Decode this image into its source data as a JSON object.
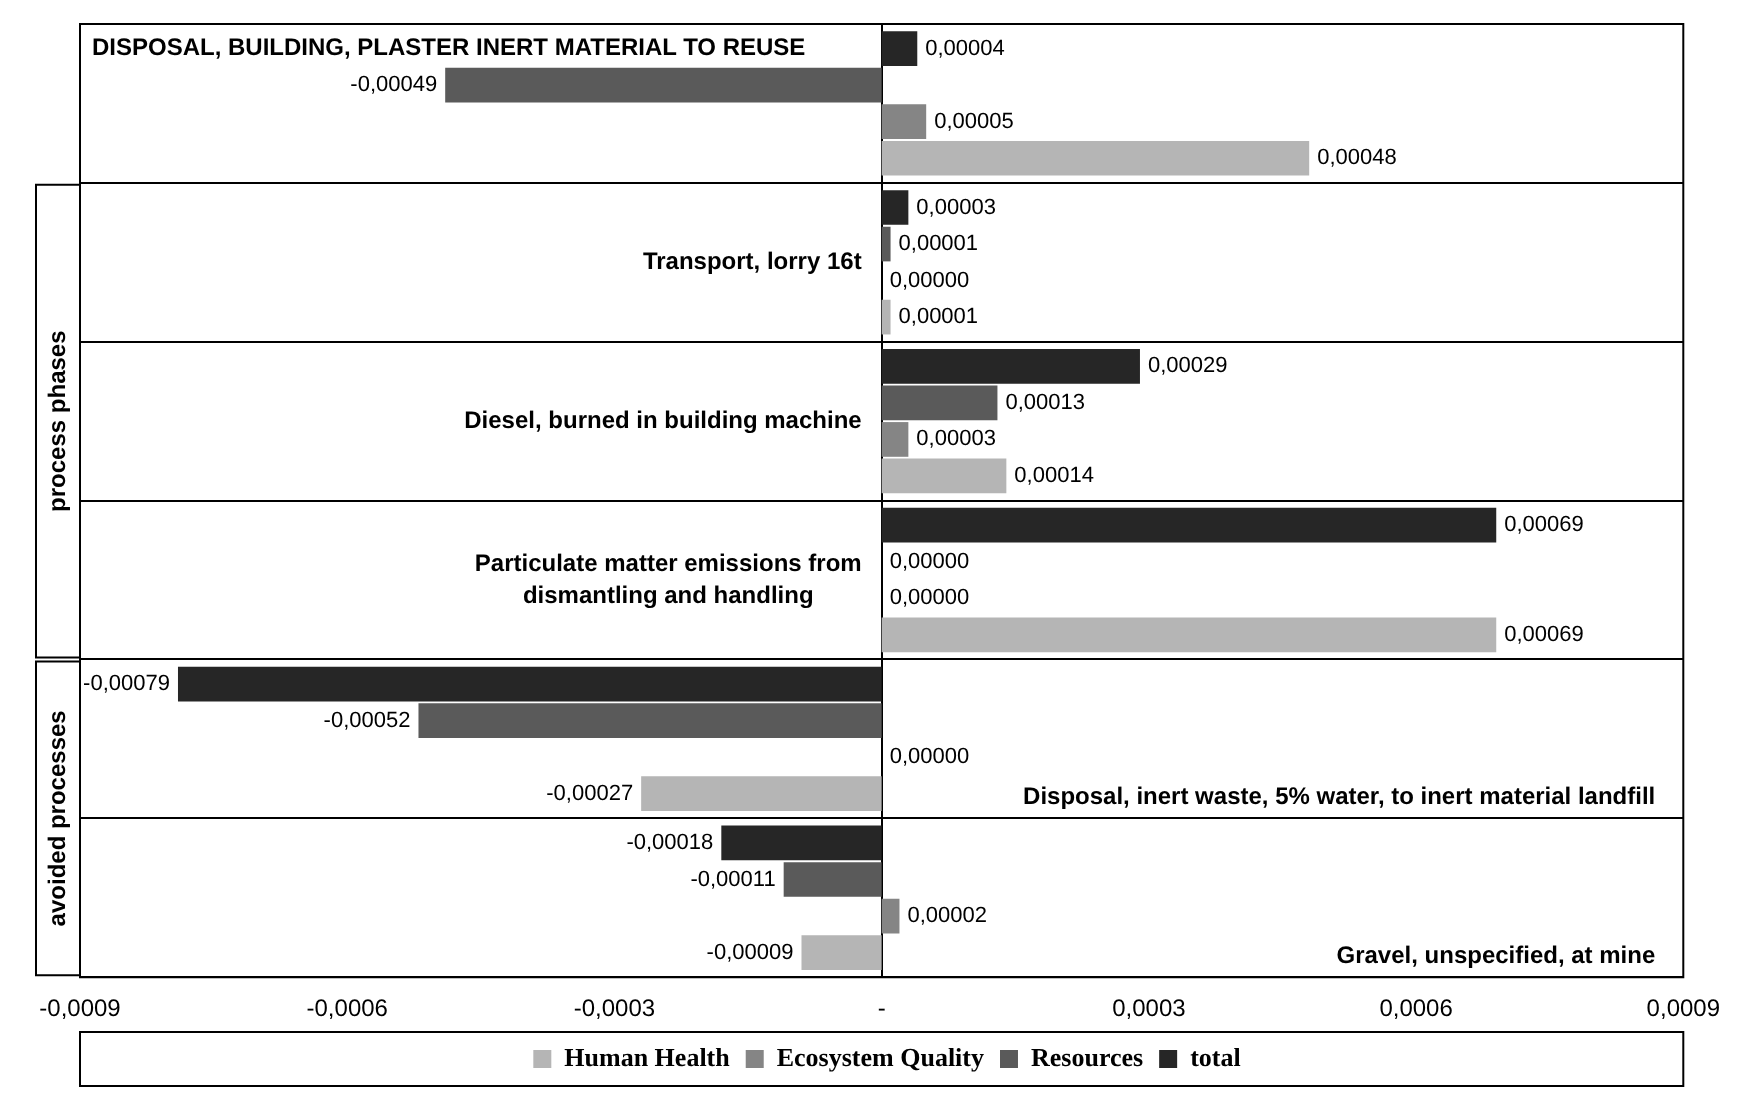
{
  "chart_data": {
    "type": "bar",
    "orientation": "horizontal",
    "categories": [
      "DISPOSAL, BUILDING, PLASTER INERT MATERIAL TO REUSE",
      "Transport, lorry 16t",
      "Diesel, burned in building machine",
      "Particulate matter emissions from dismantling and handling",
      "Disposal, inert waste, 5% water, to inert material landfill",
      "Gravel, unspecified, at mine"
    ],
    "series": [
      {
        "name": "total",
        "color": "#262626",
        "values": [
          4e-05,
          3e-05,
          0.00029,
          0.00069,
          -0.00079,
          -0.00018
        ],
        "value_labels": [
          "0,00004",
          "0,00003",
          "0,00029",
          "0,00069",
          "-0,00079",
          "-0,00018"
        ]
      },
      {
        "name": "Resources",
        "color": "#5a5a5a",
        "values": [
          -0.00049,
          1e-05,
          0.00013,
          0,
          -0.00052,
          -0.00011
        ],
        "value_labels": [
          "-0,00049",
          "0,00001",
          "0,00013",
          "0,00000",
          "-0,00052",
          "-0,00011"
        ]
      },
      {
        "name": "Ecosystem Quality",
        "color": "#858585",
        "values": [
          5e-05,
          0,
          3e-05,
          0,
          0,
          2e-05
        ],
        "value_labels": [
          "0,00005",
          "0,00000",
          "0,00003",
          "0,00000",
          "0,00000",
          "0,00002"
        ]
      },
      {
        "name": "Human Health",
        "color": "#b5b5b5",
        "values": [
          0.00048,
          1e-05,
          0.00014,
          0.00069,
          -0.00027,
          -9e-05
        ],
        "value_labels": [
          "0,00048",
          "0,00001",
          "0,00014",
          "0,00069",
          "-0,00027",
          "-0,00009"
        ]
      }
    ],
    "xlim": [
      -0.0009,
      0.0009
    ],
    "xticks": [
      {
        "value": -0.0009,
        "label": "-0,0009"
      },
      {
        "value": -0.0006,
        "label": "-0,0006"
      },
      {
        "value": -0.0003,
        "label": "-0,0003"
      },
      {
        "value": 0,
        "label": "-"
      },
      {
        "value": 0.0003,
        "label": "0,0003"
      },
      {
        "value": 0.0006,
        "label": "0,0006"
      },
      {
        "value": 0.0009,
        "label": "0,0009"
      }
    ],
    "annotations": [
      "process phases",
      "avoided processes"
    ],
    "grid": "y",
    "legend": "bottom"
  }
}
